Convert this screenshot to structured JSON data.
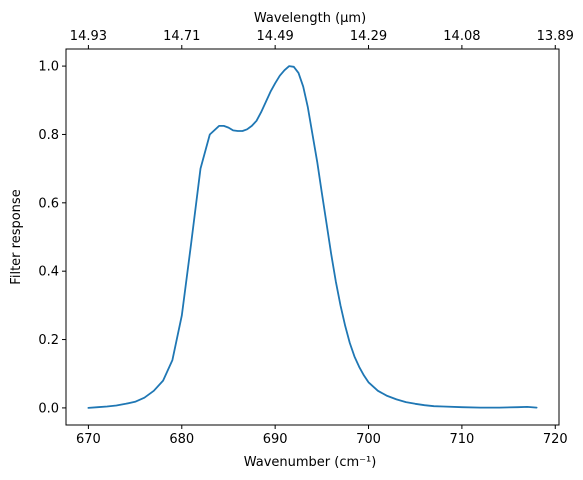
{
  "chart_data": {
    "type": "line",
    "xlabel": "Wavenumber (cm⁻¹)",
    "ylabel": "Filter response",
    "top_xlabel": "Wavelength (μm)",
    "xlim": [
      667.6,
      720.4
    ],
    "ylim": [
      -0.05,
      1.05
    ],
    "x_ticks": [
      670,
      680,
      690,
      700,
      710,
      720
    ],
    "y_ticks": [
      0.0,
      0.2,
      0.4,
      0.6,
      0.8,
      1.0
    ],
    "x_tick_labels": [
      "670",
      "680",
      "690",
      "700",
      "710",
      "720"
    ],
    "y_tick_labels": [
      "0.0",
      "0.2",
      "0.4",
      "0.6",
      "0.8",
      "1.0"
    ],
    "top_ticks": [
      {
        "label": "14.93",
        "at": 670
      },
      {
        "label": "14.71",
        "at": 680
      },
      {
        "label": "14.49",
        "at": 690
      },
      {
        "label": "14.29",
        "at": 700
      },
      {
        "label": "14.08",
        "at": 710
      },
      {
        "label": "13.89",
        "at": 720
      }
    ],
    "grid": false,
    "series": [
      {
        "color": "#1f77b4",
        "x": [
          670,
          671,
          672,
          673,
          674,
          675,
          676,
          677,
          678,
          679,
          680,
          681,
          682,
          683,
          684,
          684.5,
          685,
          685.5,
          686,
          686.5,
          687,
          687.5,
          688,
          688.5,
          689,
          689.5,
          690,
          690.5,
          691,
          691.5,
          692,
          692.5,
          693,
          693.5,
          694,
          694.5,
          695,
          695.5,
          696,
          696.5,
          697,
          697.5,
          698,
          698.5,
          699,
          699.5,
          700,
          701,
          702,
          703,
          704,
          705,
          706,
          707,
          708,
          710,
          712,
          714,
          716,
          717,
          718
        ],
        "y": [
          0.0,
          0.002,
          0.004,
          0.007,
          0.012,
          0.018,
          0.03,
          0.05,
          0.08,
          0.14,
          0.27,
          0.48,
          0.7,
          0.8,
          0.825,
          0.825,
          0.82,
          0.812,
          0.81,
          0.81,
          0.815,
          0.825,
          0.84,
          0.865,
          0.895,
          0.925,
          0.95,
          0.972,
          0.988,
          1.0,
          0.998,
          0.98,
          0.94,
          0.88,
          0.8,
          0.72,
          0.63,
          0.54,
          0.45,
          0.37,
          0.3,
          0.24,
          0.19,
          0.15,
          0.12,
          0.095,
          0.075,
          0.05,
          0.035,
          0.025,
          0.017,
          0.012,
          0.008,
          0.005,
          0.004,
          0.002,
          0.001,
          0.001,
          0.002,
          0.003,
          0.001
        ]
      }
    ]
  }
}
